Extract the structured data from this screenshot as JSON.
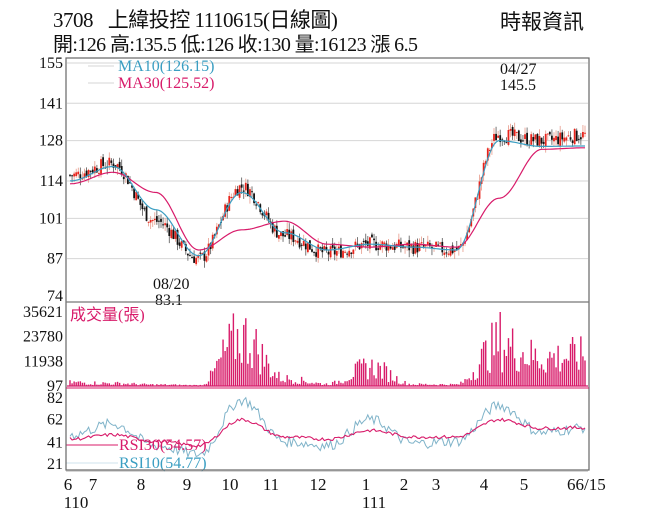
{
  "header": {
    "stock_code": "3708",
    "stock_name": "上緯投控",
    "date_label": "1110615(日線圖)",
    "source": "時報資訊",
    "ohlc_line": "開:126 高:135.5 低:126 收:130 量:16123 漲 6.5"
  },
  "colors": {
    "up": "#e8231b",
    "down": "#111111",
    "ma10": "#3a9ec2",
    "ma30": "#d81b6a",
    "volume": "#d81b6a",
    "rsi30": "#d81b6a",
    "rsi10": "#7fb3c9",
    "grid": "#d6d6d6",
    "frame": "#666666"
  },
  "price_panel": {
    "y_ticks": [
      "155",
      "141",
      "128",
      "114",
      "101",
      "87",
      "74"
    ],
    "legend": [
      {
        "label": "MA10(126.15)",
        "color": "#3a9ec2"
      },
      {
        "label": "MA30(125.52)",
        "color": "#d81b6a"
      }
    ],
    "annotations": {
      "high": {
        "date": "04/27",
        "value": "145.5"
      },
      "low": {
        "date": "08/20",
        "value": "83.1"
      }
    }
  },
  "volume_panel": {
    "title": "成交量(張)",
    "y_ticks": [
      "35621",
      "23780",
      "11938",
      "97"
    ]
  },
  "rsi_panel": {
    "y_ticks": [
      "82",
      "62",
      "41",
      "21"
    ],
    "legend": [
      {
        "label": "RSI30(54.57)",
        "color": "#d81b6a"
      },
      {
        "label": "RSI10(54.77)",
        "color": "#3a9ec2"
      }
    ]
  },
  "x_axis": {
    "month_labels": [
      "6",
      "7",
      "8",
      "9",
      "10",
      "11",
      "12",
      "1",
      "2",
      "3",
      "4",
      "5",
      "66/15"
    ],
    "year_labels": [
      "110",
      "111"
    ]
  },
  "chart_data": [
    {
      "type": "line",
      "title": "3708 上緯投控 1110615(日線圖) — 股價 (candlestick, approximate closes)",
      "x": [
        "6",
        "7",
        "8",
        "9",
        "10",
        "11",
        "12",
        "1",
        "2",
        "3",
        "4",
        "5",
        "6/15"
      ],
      "series": [
        {
          "name": "Close",
          "values": [
            116,
            120,
            100,
            87,
            112,
            95,
            89,
            92,
            91,
            90,
            130,
            128,
            130
          ]
        },
        {
          "name": "MA10",
          "values": [
            114,
            119,
            104,
            88,
            110,
            96,
            90,
            92,
            91,
            90,
            128,
            126,
            126.15
          ]
        },
        {
          "name": "MA30",
          "values": [
            113,
            117,
            110,
            90,
            97,
            100,
            92,
            91,
            92,
            91,
            108,
            125,
            125.52
          ]
        }
      ],
      "ylim": [
        74,
        155
      ],
      "y_ticks": [
        155,
        141,
        128,
        114,
        101,
        87,
        74
      ],
      "annotations": [
        "04/27 145.5 (high)",
        "08/20 83.1 (low)"
      ],
      "grid": true
    },
    {
      "type": "bar",
      "title": "成交量(張)",
      "x": [
        "6",
        "7",
        "8",
        "9",
        "10",
        "11",
        "12",
        "1",
        "2",
        "3",
        "4",
        "5",
        "6/15"
      ],
      "values": [
        2000,
        1500,
        800,
        500,
        26000,
        4000,
        1200,
        10000,
        1000,
        900,
        22000,
        15000,
        16123
      ],
      "ylim": [
        97,
        35621
      ],
      "y_ticks": [
        35621,
        23780,
        11938,
        97
      ],
      "annotations": [
        "peak ~35621 late April"
      ]
    },
    {
      "type": "line",
      "title": "RSI",
      "x": [
        "6",
        "7",
        "8",
        "9",
        "10",
        "11",
        "12",
        "1",
        "2",
        "3",
        "4",
        "5",
        "6/15"
      ],
      "series": [
        {
          "name": "RSI30",
          "values": [
            44,
            48,
            42,
            38,
            62,
            46,
            44,
            52,
            46,
            46,
            62,
            54,
            54.57
          ]
        },
        {
          "name": "RSI10",
          "values": [
            48,
            58,
            38,
            30,
            80,
            42,
            38,
            62,
            40,
            42,
            75,
            50,
            54.77
          ]
        }
      ],
      "ylim": [
        21,
        82
      ],
      "y_ticks": [
        82,
        62,
        41,
        21
      ]
    }
  ]
}
